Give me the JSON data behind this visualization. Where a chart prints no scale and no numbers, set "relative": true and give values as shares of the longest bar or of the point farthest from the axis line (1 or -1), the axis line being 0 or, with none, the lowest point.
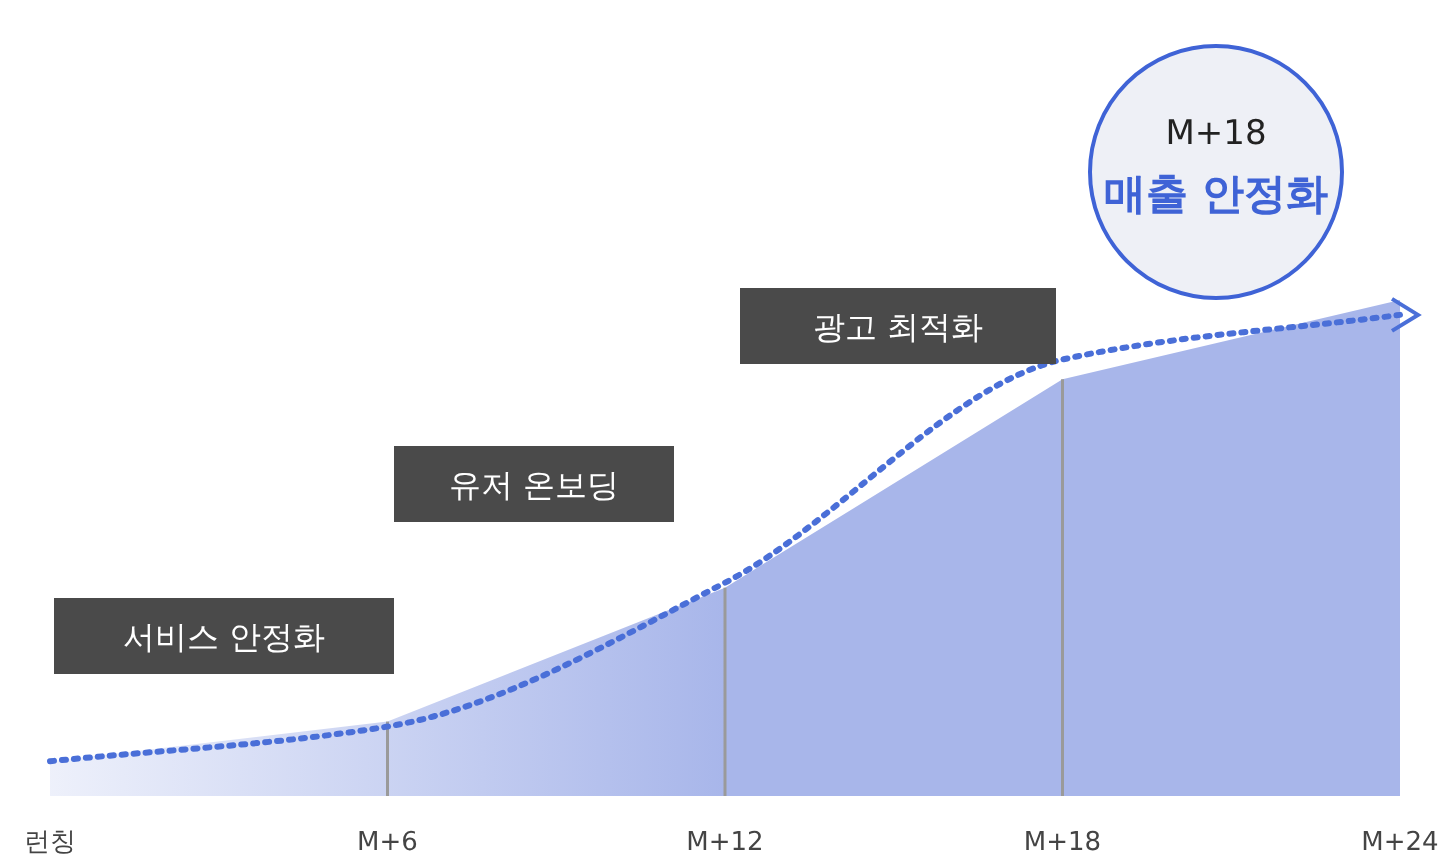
{
  "chart_data": {
    "type": "area",
    "relative": true,
    "categories": [
      "런칭",
      "M+6",
      "M+12",
      "M+18",
      "M+24"
    ],
    "grid": "x",
    "series": [
      {
        "color": "#a8b6ea",
        "values": [
          0.07,
          0.15,
          0.42,
          0.84,
          1
        ]
      },
      {
        "type": "line",
        "color": "#4a6fd8",
        "line_style": "dotted",
        "marker": "none",
        "values": [
          0.07,
          0.14,
          0.43,
          0.88,
          0.97
        ]
      }
    ],
    "annotations": [
      "서비스 안정화",
      "유저 온보딩",
      "광고 최적화",
      "M+18",
      "매출 안정화"
    ]
  }
}
